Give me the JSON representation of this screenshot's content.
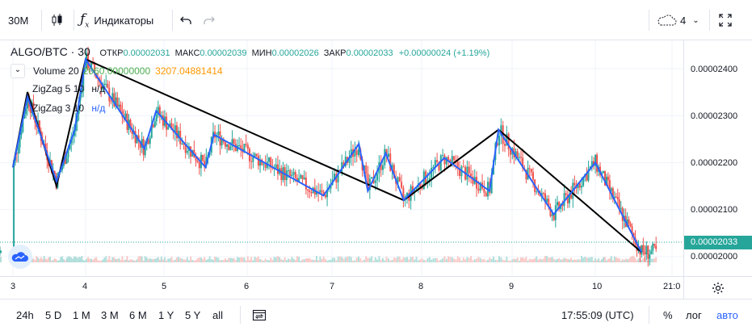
{
  "toolbar": {
    "interval": "30M",
    "indicators_label": "Индикаторы",
    "layout_count": "4"
  },
  "symbol_line": {
    "symbol": "ALGO/BTC · 30",
    "open_label": "ОТКР",
    "open_value": "0.00002031",
    "high_label": "МАКС",
    "high_value": "0.00002039",
    "low_label": "МИН",
    "low_value": "0.00002026",
    "close_label": "ЗАКР",
    "close_value": "0.00002033",
    "change": "+0.00000024 (+1.19%)"
  },
  "indicators": {
    "volume_label": "Volume 20",
    "volume_ma": "2060.00000000",
    "volume_value": "3207.04881414",
    "zigzag1_label": "ZigZag 5 10",
    "zigzag1_value": "н/д",
    "zigzag2_label": "ZigZag 3 10",
    "zigzag2_value": "н/д"
  },
  "price_axis": {
    "labels": [
      "0.00002400",
      "0.00002300",
      "0.00002200",
      "0.00002100",
      "0.00002000"
    ],
    "current_price": "0.00002033"
  },
  "time_axis": {
    "labels": [
      "3",
      "4",
      "5",
      "6",
      "7",
      "8",
      "9",
      "10",
      "21:0"
    ]
  },
  "bottom_bar": {
    "ranges": [
      "24h",
      "5 D",
      "1 M",
      "3 M",
      "6 M",
      "1 Y",
      "5 Y",
      "all"
    ],
    "clock": "17:55:09 (UTC)",
    "percent": "%",
    "log": "лог",
    "auto": "авто"
  },
  "colors": {
    "up": "#26a69a",
    "down": "#ef5350",
    "zigzag_black": "#000000",
    "zigzag_blue": "#2962ff",
    "open_value": "#26a69a",
    "volume_ma": "#4caf50",
    "volume_value": "#ff9800"
  },
  "chart_data": {
    "type": "candlestick",
    "x_axis": [
      "3",
      "4",
      "5",
      "6",
      "7",
      "8",
      "9",
      "10",
      "21:0"
    ],
    "y_range": [
      1.98e-05,
      2.43e-05
    ],
    "zigzag_5_10": [
      {
        "x": 3.0,
        "y": 2.19e-05
      },
      {
        "x": 3.2,
        "y": 2.35e-05
      },
      {
        "x": 3.6,
        "y": 2.15e-05
      },
      {
        "x": 4.0,
        "y": 2.42e-05
      },
      {
        "x": 7.8,
        "y": 2.12e-05
      },
      {
        "x": 8.85,
        "y": 2.27e-05
      },
      {
        "x": 10.6,
        "y": 2.01e-05
      }
    ],
    "zigzag_3_10": [
      {
        "x": 3.0,
        "y": 2.19e-05
      },
      {
        "x": 3.2,
        "y": 2.34e-05
      },
      {
        "x": 3.6,
        "y": 2.16e-05
      },
      {
        "x": 3.85,
        "y": 2.27e-05
      },
      {
        "x": 4.0,
        "y": 2.42e-05
      },
      {
        "x": 4.75,
        "y": 2.23e-05
      },
      {
        "x": 4.9,
        "y": 2.31e-05
      },
      {
        "x": 5.5,
        "y": 2.19e-05
      },
      {
        "x": 5.6,
        "y": 2.26e-05
      },
      {
        "x": 6.9,
        "y": 2.13e-05
      },
      {
        "x": 7.3,
        "y": 2.24e-05
      },
      {
        "x": 7.4,
        "y": 2.14e-05
      },
      {
        "x": 7.6,
        "y": 2.22e-05
      },
      {
        "x": 7.8,
        "y": 2.12e-05
      },
      {
        "x": 8.25,
        "y": 2.21e-05
      },
      {
        "x": 8.75,
        "y": 2.14e-05
      },
      {
        "x": 8.85,
        "y": 2.27e-05
      },
      {
        "x": 9.5,
        "y": 2.09e-05
      },
      {
        "x": 10.0,
        "y": 2.2e-05
      },
      {
        "x": 10.6,
        "y": 2.01e-05
      }
    ]
  }
}
